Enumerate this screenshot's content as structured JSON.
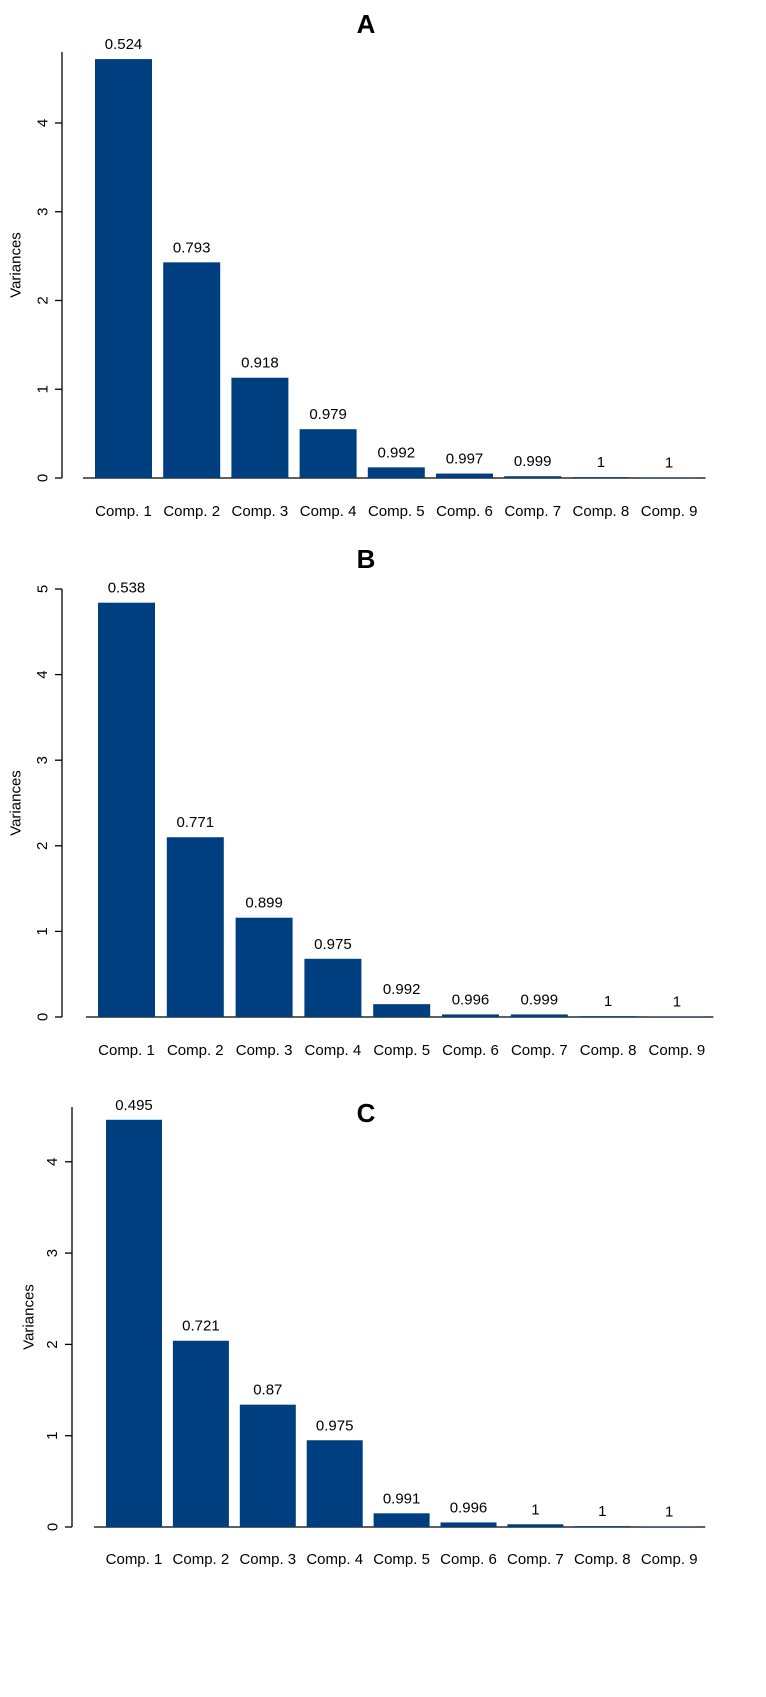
{
  "chart_data": [
    {
      "type": "bar",
      "title": "A",
      "ylabel": "Variances",
      "ylim": [
        0,
        4.8
      ],
      "yticks": [
        "0",
        "1",
        "2",
        "3",
        "4"
      ],
      "color": "#003f7f",
      "categories": [
        "Comp. 1",
        "Comp. 2",
        "Comp. 3",
        "Comp. 4",
        "Comp. 5",
        "Comp. 6",
        "Comp. 7",
        "Comp. 8",
        "Comp. 9"
      ],
      "values": [
        4.72,
        2.43,
        1.13,
        0.55,
        0.12,
        0.05,
        0.02,
        0.01,
        0.002
      ],
      "labels": [
        "0.524",
        "0.793",
        "0.918",
        "0.979",
        "0.992",
        "0.997",
        "0.999",
        "1",
        "1"
      ]
    },
    {
      "type": "bar",
      "title": "B",
      "ylabel": "Variances",
      "ylim": [
        0,
        5.0
      ],
      "yticks": [
        "0",
        "1",
        "2",
        "3",
        "4",
        "5"
      ],
      "color": "#003f7f",
      "categories": [
        "Comp. 1",
        "Comp. 2",
        "Comp. 3",
        "Comp. 4",
        "Comp. 5",
        "Comp. 6",
        "Comp. 7",
        "Comp. 8",
        "Comp. 9"
      ],
      "values": [
        4.84,
        2.1,
        1.16,
        0.68,
        0.15,
        0.03,
        0.03,
        0.01,
        0.002
      ],
      "labels": [
        "0.538",
        "0.771",
        "0.899",
        "0.975",
        "0.992",
        "0.996",
        "0.999",
        "1",
        "1"
      ]
    },
    {
      "type": "bar",
      "title": "C",
      "ylabel": "Variances",
      "ylim": [
        0,
        4.6
      ],
      "yticks": [
        "0",
        "1",
        "2",
        "3",
        "4"
      ],
      "color": "#003f7f",
      "categories": [
        "Comp. 1",
        "Comp. 2",
        "Comp. 3",
        "Comp. 4",
        "Comp. 5",
        "Comp. 6",
        "Comp. 7",
        "Comp. 8",
        "Comp. 9"
      ],
      "values": [
        4.46,
        2.04,
        1.34,
        0.95,
        0.15,
        0.05,
        0.03,
        0.01,
        0.002
      ],
      "labels": [
        "0.495",
        "0.721",
        "0.87",
        "0.975",
        "0.991",
        "0.996",
        "1",
        "1",
        "1"
      ]
    }
  ]
}
